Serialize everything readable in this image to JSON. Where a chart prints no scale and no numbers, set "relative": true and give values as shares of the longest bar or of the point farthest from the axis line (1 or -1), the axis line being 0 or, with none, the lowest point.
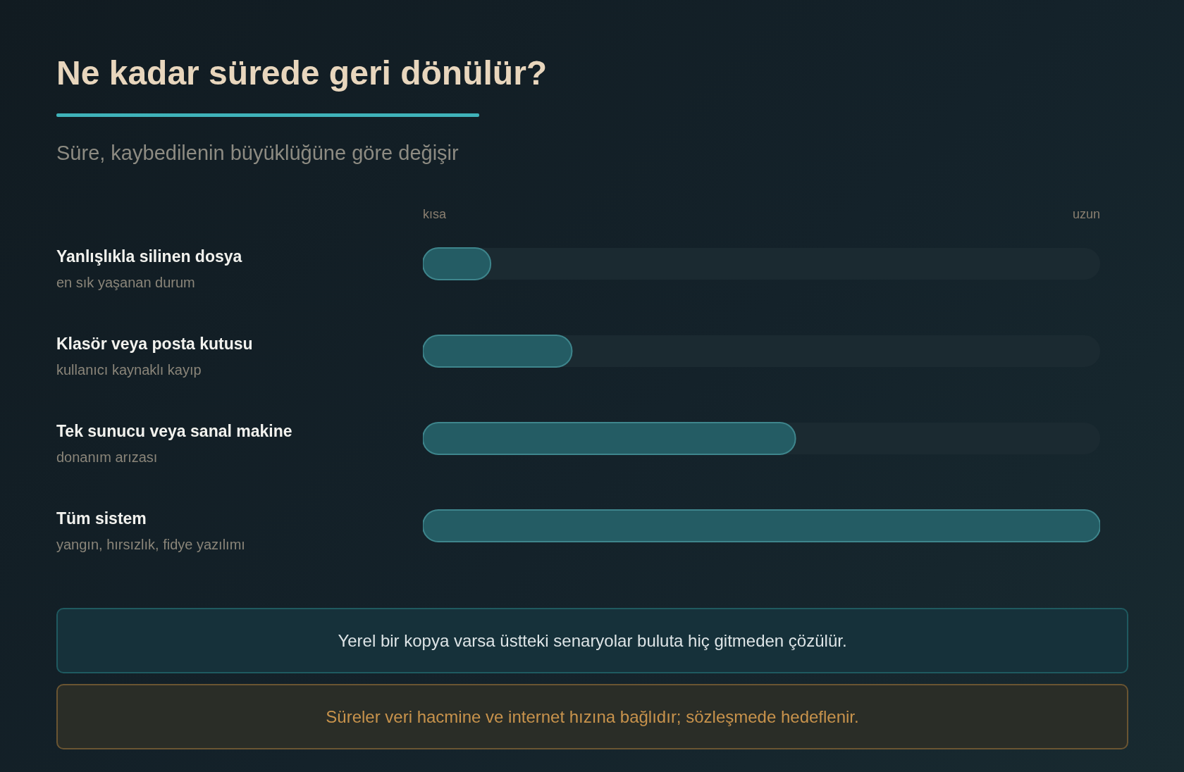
{
  "chart_data": {
    "type": "bar",
    "orientation": "horizontal",
    "relative": true,
    "title": "Ne kadar sürede geri dönülür?",
    "subtitle": "Süre, kaybedilenin büyüklüğüne göre değişir",
    "categories": [
      "Yanlışlıkla silinen dosya\nen sık yaşanan durum",
      "Klasör veya posta kutusu\nkullanıcı kaynaklı kayıp",
      "Tek sunucu veya sanal makine\ndonanım arızası",
      "Tüm sistem\nyangın, hırsızlık, fidye yazılımı"
    ],
    "values": [
      0.1,
      0.22,
      0.55,
      1
    ],
    "color": "#245c64",
    "annotations": [
      "kısa",
      "uzun",
      "Yerel bir kopya varsa üstteki senaryolar buluta hiç gitmeden çözülür.",
      "Süreler veri hacmine ve internet hızına bağlıdır; sözleşmede hedeflenir."
    ]
  }
}
